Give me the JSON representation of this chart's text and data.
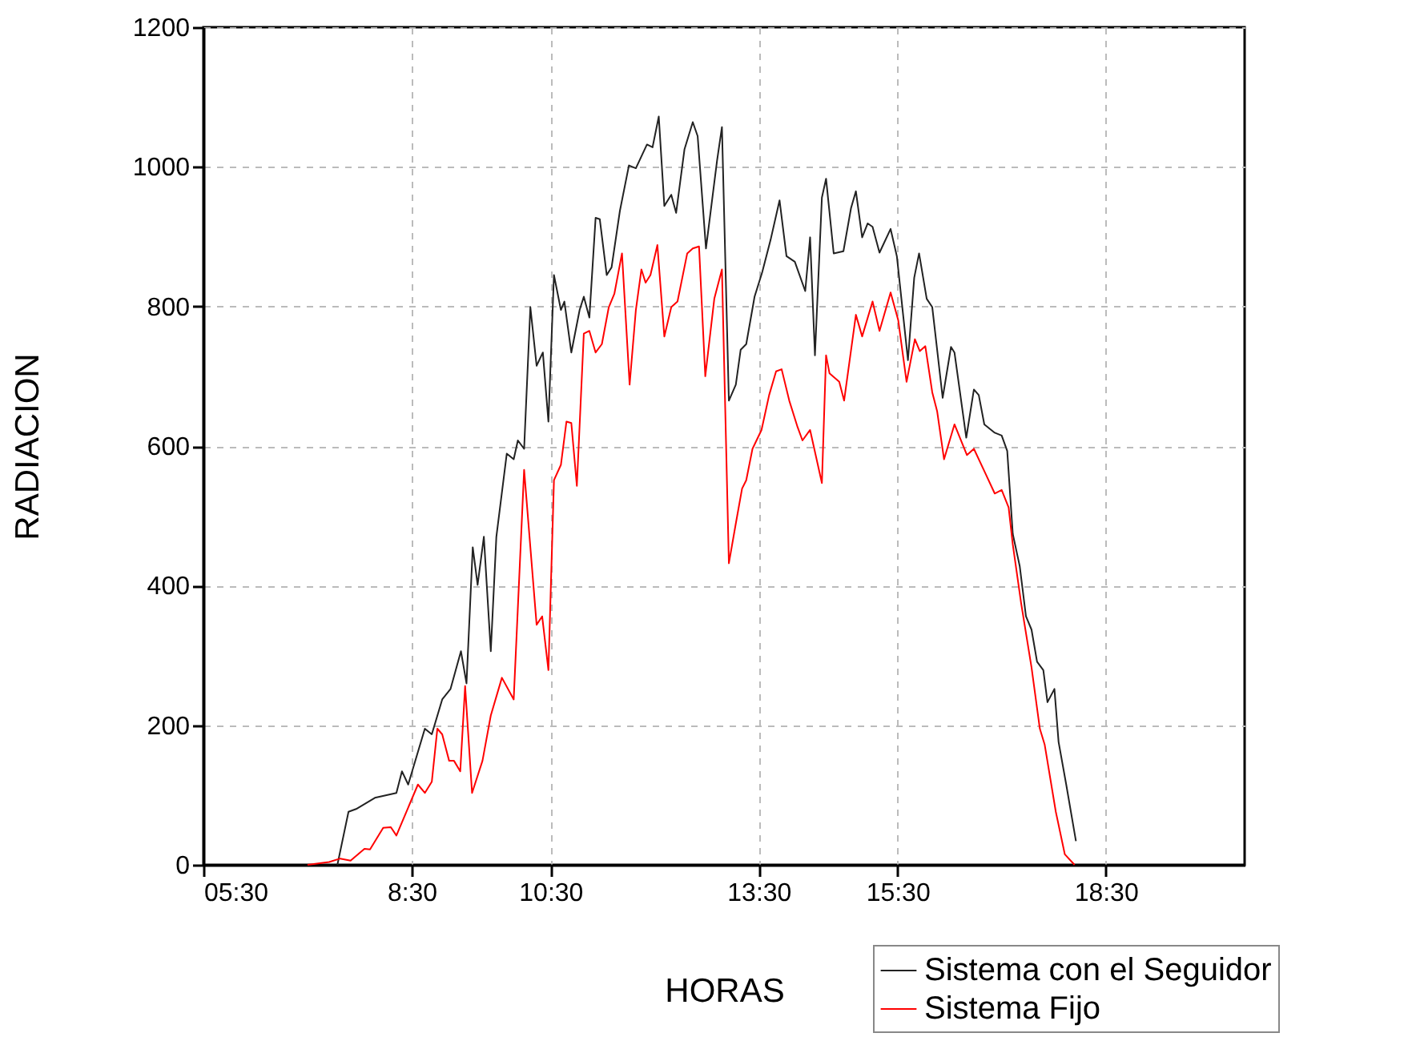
{
  "chart_data": {
    "type": "line",
    "xlabel": "HORAS",
    "ylabel": "RADIACION",
    "xlim": [
      5.5,
      20.5
    ],
    "ylim": [
      0,
      1200
    ],
    "xticks": [
      {
        "value": 5.5,
        "label": "05:30"
      },
      {
        "value": 8.5,
        "label": "8:30"
      },
      {
        "value": 10.5,
        "label": "10:30"
      },
      {
        "value": 13.5,
        "label": "13:30"
      },
      {
        "value": 15.5,
        "label": "15:30"
      },
      {
        "value": 18.5,
        "label": "18:30"
      }
    ],
    "yticks": [
      0,
      200,
      400,
      600,
      800,
      1000,
      1200
    ],
    "grid": true,
    "legend": "bottom right",
    "line_style": "solid",
    "marker": "none",
    "series": [
      {
        "name": "Sistema con el Seguidor",
        "color": "#222222",
        "x": [
          7.43,
          7.59,
          7.7,
          7.97,
          8.28,
          8.36,
          8.45,
          8.69,
          8.79,
          8.94,
          9.06,
          9.21,
          9.29,
          9.38,
          9.45,
          9.54,
          9.64,
          9.72,
          9.87,
          9.97,
          10.03,
          10.12,
          10.21,
          10.3,
          10.39,
          10.47,
          10.55,
          10.65,
          10.7,
          10.8,
          10.92,
          10.98,
          11.06,
          11.15,
          11.21,
          11.31,
          11.38,
          11.5,
          11.63,
          11.73,
          11.89,
          11.97,
          12.06,
          12.14,
          12.24,
          12.31,
          12.43,
          12.55,
          12.62,
          12.74,
          12.9,
          12.97,
          13.07,
          13.17,
          13.24,
          13.32,
          13.44,
          13.55,
          13.67,
          13.8,
          13.9,
          14.02,
          14.17,
          14.24,
          14.31,
          14.41,
          14.47,
          14.58,
          14.72,
          14.83,
          14.9,
          14.99,
          15.07,
          15.14,
          15.24,
          15.4,
          15.49,
          15.65,
          15.74,
          15.81,
          15.92,
          16.0,
          16.15,
          16.27,
          16.32,
          16.49,
          16.6,
          16.67,
          16.75,
          16.9,
          17.0,
          17.08,
          17.16,
          17.26,
          17.35,
          17.43,
          17.51,
          17.6,
          17.66,
          17.76,
          17.82,
          17.93,
          18.07
        ],
        "values": [
          0,
          76,
          80,
          96,
          103,
          134,
          115,
          195,
          187,
          237,
          252,
          306,
          260,
          455,
          401,
          470,
          306,
          470,
          589,
          581,
          608,
          596,
          799,
          715,
          734,
          635,
          845,
          795,
          807,
          734,
          795,
          814,
          784,
          927,
          925,
          845,
          856,
          937,
          1002,
          998,
          1032,
          1028,
          1072,
          944,
          960,
          934,
          1025,
          1064,
          1044,
          883,
          1009,
          1057,
          665,
          688,
          738,
          746,
          814,
          849,
          895,
          952,
          872,
          864,
          822,
          899,
          730,
          956,
          983,
          876,
          879,
          941,
          965,
          899,
          919,
          914,
          877,
          911,
          872,
          723,
          841,
          876,
          811,
          799,
          669,
          742,
          734,
          612,
          681,
          673,
          631,
          619,
          615,
          593,
          474,
          428,
          356,
          337,
          291,
          279,
          233,
          252,
          176,
          115,
          34
        ]
      },
      {
        "name": "Sistema Fijo",
        "color": "#ff0000",
        "x": [
          7.0,
          7.31,
          7.47,
          7.62,
          7.82,
          7.9,
          8.09,
          8.2,
          8.28,
          8.59,
          8.69,
          8.79,
          8.87,
          8.94,
          9.04,
          9.11,
          9.2,
          9.27,
          9.37,
          9.52,
          9.64,
          9.8,
          9.97,
          10.12,
          10.3,
          10.38,
          10.47,
          10.55,
          10.65,
          10.73,
          10.8,
          10.88,
          10.98,
          11.06,
          11.15,
          11.24,
          11.34,
          11.42,
          11.53,
          11.64,
          11.73,
          11.81,
          11.87,
          11.94,
          12.04,
          12.14,
          12.24,
          12.33,
          12.47,
          12.55,
          12.64,
          12.73,
          12.86,
          12.97,
          13.07,
          13.17,
          13.26,
          13.32,
          13.41,
          13.54,
          13.65,
          13.75,
          13.83,
          13.94,
          14.06,
          14.13,
          14.24,
          14.41,
          14.47,
          14.52,
          14.66,
          14.73,
          14.9,
          14.99,
          15.14,
          15.24,
          15.4,
          15.51,
          15.63,
          15.75,
          15.82,
          15.9,
          16.0,
          16.07,
          16.17,
          16.32,
          16.5,
          16.6,
          16.76,
          16.9,
          17.0,
          17.1,
          17.16,
          17.28,
          17.43,
          17.55,
          17.62,
          17.78,
          17.91,
          18.05
        ],
        "values": [
          0,
          4,
          9,
          6,
          23,
          22,
          53,
          54,
          42,
          115,
          103,
          119,
          195,
          187,
          149,
          149,
          134,
          256,
          103,
          149,
          214,
          268,
          237,
          566,
          344,
          356,
          279,
          551,
          573,
          635,
          633,
          543,
          761,
          765,
          734,
          746,
          799,
          818,
          876,
          688,
          795,
          853,
          834,
          845,
          888,
          757,
          799,
          807,
          876,
          883,
          886,
          700,
          811,
          853,
          432,
          489,
          539,
          551,
          596,
          623,
          673,
          707,
          710,
          665,
          627,
          608,
          623,
          547,
          730,
          704,
          692,
          665,
          788,
          757,
          807,
          765,
          820,
          780,
          692,
          753,
          736,
          743,
          677,
          650,
          581,
          631,
          587,
          596,
          562,
          532,
          537,
          512,
          459,
          375,
          283,
          195,
          172,
          76,
          15,
          0
        ]
      }
    ]
  }
}
